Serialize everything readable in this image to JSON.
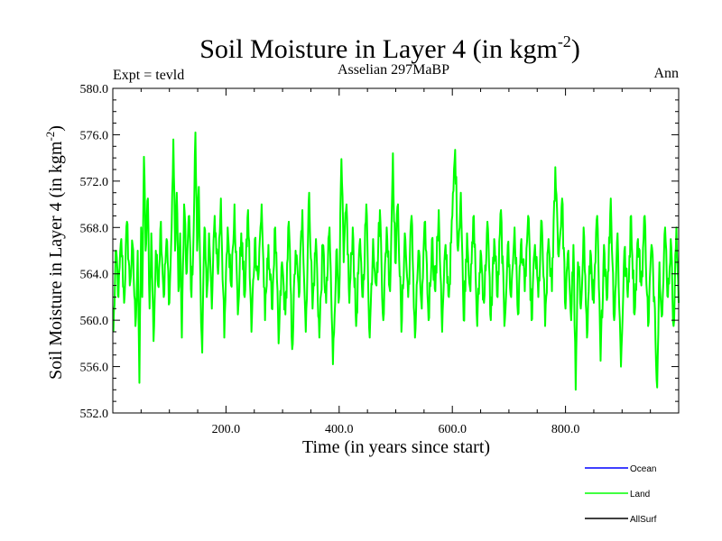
{
  "colors": {
    "ocean": "#0000ff",
    "land": "#00ff00",
    "allsurf": "#000000",
    "axis": "#000000",
    "background": "#ffffff"
  },
  "header": {
    "title_main": "Soil Moisture in Layer 4 (in kgm",
    "title_sup": "-2",
    "title_close": ")",
    "left": "Expt = tevld",
    "center": "Asselian 297MaBP",
    "right": "Ann"
  },
  "chart_data": {
    "type": "line",
    "title": "Soil Moisture in Layer 4 (in kgm-2)",
    "subtitle_left": "Expt = tevld",
    "subtitle_center": "Asselian 297MaBP",
    "subtitle_right": "Ann",
    "xlabel": "Time (in years since start)",
    "ylabel_main": "Soil Moisture in Layer 4 (in kgm",
    "ylabel_sup": "-2",
    "ylabel_close": ")",
    "xlim": [
      0,
      1000
    ],
    "ylim": [
      552,
      580
    ],
    "x_ticks": [
      200,
      400,
      600,
      800
    ],
    "x_tick_labels": [
      "200.0",
      "400.0",
      "600.0",
      "800.0"
    ],
    "y_ticks": [
      552,
      556,
      560,
      564,
      568,
      572,
      576,
      580
    ],
    "y_tick_labels": [
      "552.0",
      "556.0",
      "560.0",
      "564.0",
      "568.0",
      "572.0",
      "576.0",
      "580.0"
    ],
    "legend_position": "bottom-right",
    "series": [
      {
        "name": "Ocean",
        "color": "#0000ff",
        "values": []
      },
      {
        "name": "Land",
        "color": "#00ff00",
        "x_start": 1,
        "x_end": 1000,
        "mean": 564.8,
        "min": 554.0,
        "max": 576.2,
        "anchors": [
          [
            1,
            559.0
          ],
          [
            6,
            566.0
          ],
          [
            10,
            562.0
          ],
          [
            15,
            567.0
          ],
          [
            20,
            561.5
          ],
          [
            25,
            568.5
          ],
          [
            30,
            563.0
          ],
          [
            35,
            566.5
          ],
          [
            40,
            559.5
          ],
          [
            44,
            566.0
          ],
          [
            47,
            554.6
          ],
          [
            50,
            568.0
          ],
          [
            52,
            562.0
          ],
          [
            55,
            574.1
          ],
          [
            58,
            566.0
          ],
          [
            62,
            570.5
          ],
          [
            65,
            561.0
          ],
          [
            68,
            567.5
          ],
          [
            72,
            558.2
          ],
          [
            76,
            566.0
          ],
          [
            80,
            563.0
          ],
          [
            85,
            568.5
          ],
          [
            90,
            562.0
          ],
          [
            95,
            567.0
          ],
          [
            100,
            561.5
          ],
          [
            104,
            568.0
          ],
          [
            107,
            575.6
          ],
          [
            110,
            566.0
          ],
          [
            113,
            571.0
          ],
          [
            116,
            562.5
          ],
          [
            119,
            567.5
          ],
          [
            122,
            558.5
          ],
          [
            126,
            570.0
          ],
          [
            130,
            564.0
          ],
          [
            135,
            569.0
          ],
          [
            139,
            562.0
          ],
          [
            143,
            568.0
          ],
          [
            146,
            576.2
          ],
          [
            149,
            566.0
          ],
          [
            152,
            571.5
          ],
          [
            155,
            563.0
          ],
          [
            158,
            557.2
          ],
          [
            162,
            568.0
          ],
          [
            166,
            562.0
          ],
          [
            170,
            567.5
          ],
          [
            175,
            561.0
          ],
          [
            180,
            569.0
          ],
          [
            186,
            564.0
          ],
          [
            191,
            570.5
          ],
          [
            197,
            558.5
          ],
          [
            203,
            568.0
          ],
          [
            209,
            563.0
          ],
          [
            215,
            570.0
          ],
          [
            221,
            560.5
          ],
          [
            227,
            567.5
          ],
          [
            233,
            562.0
          ],
          [
            239,
            569.5
          ],
          [
            245,
            559.0
          ],
          [
            251,
            567.0
          ],
          [
            257,
            563.5
          ],
          [
            263,
            570.0
          ],
          [
            269,
            560.0
          ],
          [
            275,
            566.5
          ],
          [
            281,
            561.0
          ],
          [
            287,
            568.0
          ],
          [
            293,
            558.0
          ],
          [
            299,
            565.0
          ],
          [
            305,
            560.5
          ],
          [
            311,
            568.5
          ],
          [
            317,
            557.5
          ],
          [
            323,
            566.0
          ],
          [
            329,
            562.0
          ],
          [
            335,
            569.5
          ],
          [
            341,
            559.0
          ],
          [
            347,
            571.0
          ],
          [
            353,
            561.0
          ],
          [
            359,
            567.0
          ],
          [
            365,
            558.5
          ],
          [
            371,
            566.5
          ],
          [
            377,
            561.5
          ],
          [
            383,
            568.0
          ],
          [
            389,
            556.2
          ],
          [
            395,
            566.0
          ],
          [
            400,
            562.0
          ],
          [
            404,
            573.9
          ],
          [
            408,
            565.0
          ],
          [
            413,
            570.0
          ],
          [
            418,
            561.5
          ],
          [
            424,
            568.0
          ],
          [
            430,
            559.5
          ],
          [
            436,
            566.5
          ],
          [
            442,
            562.0
          ],
          [
            448,
            570.0
          ],
          [
            454,
            558.5
          ],
          [
            460,
            567.0
          ],
          [
            466,
            563.0
          ],
          [
            472,
            569.5
          ],
          [
            478,
            560.0
          ],
          [
            484,
            568.0
          ],
          [
            490,
            562.5
          ],
          [
            495,
            574.4
          ],
          [
            499,
            565.0
          ],
          [
            504,
            570.0
          ],
          [
            510,
            559.0
          ],
          [
            516,
            567.5
          ],
          [
            522,
            562.0
          ],
          [
            528,
            569.0
          ],
          [
            534,
            558.5
          ],
          [
            540,
            566.0
          ],
          [
            546,
            561.0
          ],
          [
            552,
            568.5
          ],
          [
            558,
            560.0
          ],
          [
            564,
            567.0
          ],
          [
            570,
            562.5
          ],
          [
            576,
            569.5
          ],
          [
            582,
            559.0
          ],
          [
            588,
            566.5
          ],
          [
            594,
            562.0
          ],
          [
            600,
            569.0
          ],
          [
            605,
            574.7
          ],
          [
            610,
            566.0
          ],
          [
            615,
            571.0
          ],
          [
            620,
            560.0
          ],
          [
            626,
            567.5
          ],
          [
            632,
            562.5
          ],
          [
            638,
            569.0
          ],
          [
            644,
            559.5
          ],
          [
            650,
            566.0
          ],
          [
            656,
            561.5
          ],
          [
            662,
            568.5
          ],
          [
            668,
            560.0
          ],
          [
            674,
            567.0
          ],
          [
            680,
            562.0
          ],
          [
            686,
            569.5
          ],
          [
            692,
            559.5
          ],
          [
            698,
            566.5
          ],
          [
            704,
            562.0
          ],
          [
            710,
            568.0
          ],
          [
            716,
            560.5
          ],
          [
            722,
            567.0
          ],
          [
            728,
            562.5
          ],
          [
            734,
            569.0
          ],
          [
            740,
            560.0
          ],
          [
            746,
            566.5
          ],
          [
            752,
            562.0
          ],
          [
            758,
            568.5
          ],
          [
            764,
            559.5
          ],
          [
            770,
            567.0
          ],
          [
            776,
            562.5
          ],
          [
            782,
            573.2
          ],
          [
            788,
            565.5
          ],
          [
            794,
            570.5
          ],
          [
            800,
            561.0
          ],
          [
            805,
            566.0
          ],
          [
            810,
            560.0
          ],
          [
            814,
            566.5
          ],
          [
            818,
            554.0
          ],
          [
            822,
            565.0
          ],
          [
            827,
            561.0
          ],
          [
            832,
            568.0
          ],
          [
            838,
            558.5
          ],
          [
            844,
            566.0
          ],
          [
            850,
            561.5
          ],
          [
            856,
            569.0
          ],
          [
            862,
            556.5
          ],
          [
            868,
            566.5
          ],
          [
            874,
            562.0
          ],
          [
            880,
            570.5
          ],
          [
            886,
            560.0
          ],
          [
            892,
            567.5
          ],
          [
            898,
            556.0
          ],
          [
            904,
            566.0
          ],
          [
            910,
            562.0
          ],
          [
            916,
            569.0
          ],
          [
            922,
            560.5
          ],
          [
            928,
            567.0
          ],
          [
            934,
            563.0
          ],
          [
            940,
            569.0
          ],
          [
            946,
            559.5
          ],
          [
            952,
            566.5
          ],
          [
            958,
            561.0
          ],
          [
            962,
            554.2
          ],
          [
            966,
            565.0
          ],
          [
            971,
            560.5
          ],
          [
            976,
            568.0
          ],
          [
            981,
            562.0
          ],
          [
            986,
            567.0
          ],
          [
            991,
            559.5
          ],
          [
            996,
            568.0
          ],
          [
            1000,
            561.5
          ]
        ]
      },
      {
        "name": "AllSurf",
        "color": "#000000",
        "values": []
      }
    ]
  },
  "legend": [
    {
      "label": "Ocean",
      "color": "#0000ff"
    },
    {
      "label": "Land",
      "color": "#00ff00"
    },
    {
      "label": "AllSurf",
      "color": "#000000"
    }
  ]
}
